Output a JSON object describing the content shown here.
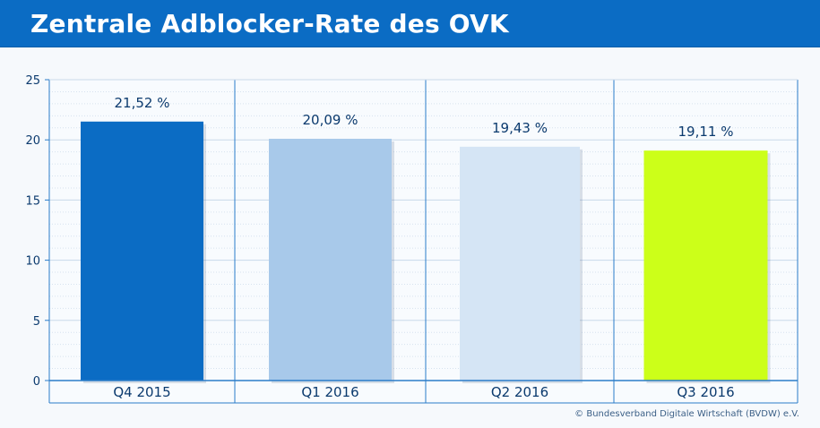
{
  "header": {
    "title": "Zentrale Adblocker-Rate des OVK"
  },
  "chart_data": {
    "type": "bar",
    "title": "Zentrale Adblocker-Rate des OVK",
    "categories": [
      "Q4 2015",
      "Q1 2016",
      "Q2 2016",
      "Q3 2016"
    ],
    "values": [
      21.52,
      20.09,
      19.43,
      19.11
    ],
    "data_labels": [
      "21,52 %",
      "20,09 %",
      "19,43 %",
      "19,11 %"
    ],
    "bar_colors": [
      "#0b6cc4",
      "#a8c9ea",
      "#d5e5f5",
      "#ccff19"
    ],
    "ylim": [
      0,
      25
    ],
    "yticks": [
      0,
      5,
      10,
      15,
      20,
      25
    ],
    "xlabel": "",
    "ylabel": "",
    "grid": true
  },
  "footer": {
    "copyright": "© Bundesverband Digitale Wirtschaft (BVDW) e.V."
  },
  "colors": {
    "header_bg": "#0b6cc4",
    "axis": "#2a7cc9",
    "text": "#0b3a6e",
    "grid": "#c9d9ea"
  }
}
